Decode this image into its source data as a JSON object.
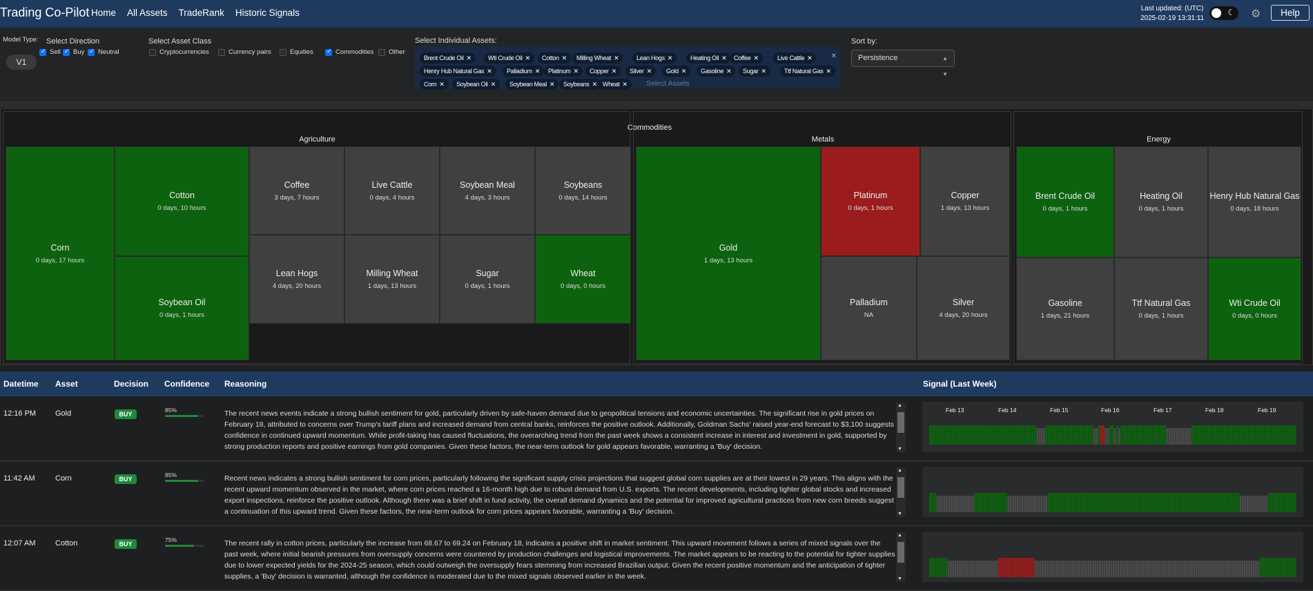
{
  "nav": {
    "brand": "Trading Co-Pilot",
    "links": [
      "Home",
      "All Assets",
      "TradeRank",
      "Historic Signals"
    ],
    "last_updated_label": "Last updated: (UTC)",
    "last_updated_value": "2025-02-19 13:31:11",
    "help": "Help",
    "theme_toggle_icon": "moon-icon",
    "settings_icon": "gear-icon"
  },
  "filters": {
    "model_type_label": "Model Type:",
    "model_type_value": "V1",
    "direction_label": "Select Direction",
    "directions": [
      {
        "label": "Sell",
        "checked": true
      },
      {
        "label": "Buy",
        "checked": true
      },
      {
        "label": "Neutral",
        "checked": true
      }
    ],
    "asset_class_label": "Select Asset Class",
    "asset_classes": [
      {
        "label": "Cryptocurrencies",
        "checked": false
      },
      {
        "label": "Currency pairs",
        "checked": false
      },
      {
        "label": "Equities",
        "checked": false
      },
      {
        "label": "Commodities",
        "checked": true
      },
      {
        "label": "Other",
        "checked": false
      }
    ],
    "assets_label": "Select Individual Assets:",
    "selected_assets": [
      "Brent Crude Oil",
      "Wti Crude Oil",
      "Cotton",
      "Milling Wheat",
      "Lean Hogs",
      "Heating Oil",
      "Coffee",
      "Live Cattle",
      "Henry Hub Natural Gas",
      "Palladium",
      "Platinum",
      "Copper",
      "Silver",
      "Gold",
      "Gasoline",
      "Sugar",
      "Ttf Natural Gas",
      "Corn",
      "Soybean Oil",
      "Soybean Meal",
      "Soybeans",
      "Wheat"
    ],
    "assets_placeholder": "Select Assets",
    "sort_label": "Sort by:",
    "sort_value": "Persistence"
  },
  "treemap": {
    "title": "Commodities",
    "groups": [
      {
        "name": "Agriculture",
        "items": [
          {
            "name": "Corn",
            "time": "0 days, 17 hours",
            "signal": "buy"
          },
          {
            "name": "Cotton",
            "time": "0 days, 10 hours",
            "signal": "buy"
          },
          {
            "name": "Soybean Oil",
            "time": "0 days, 1 hours",
            "signal": "buy"
          },
          {
            "name": "Coffee",
            "time": "3 days, 7 hours",
            "signal": "neutral"
          },
          {
            "name": "Live Cattle",
            "time": "0 days, 4 hours",
            "signal": "neutral"
          },
          {
            "name": "Soybean Meal",
            "time": "4 days, 3 hours",
            "signal": "neutral"
          },
          {
            "name": "Soybeans",
            "time": "0 days, 14 hours",
            "signal": "neutral"
          },
          {
            "name": "Lean Hogs",
            "time": "4 days, 20 hours",
            "signal": "neutral"
          },
          {
            "name": "Milling Wheat",
            "time": "1 days, 13 hours",
            "signal": "neutral"
          },
          {
            "name": "Sugar",
            "time": "0 days, 1 hours",
            "signal": "neutral"
          },
          {
            "name": "Wheat",
            "time": "0 days, 0 hours",
            "signal": "buy"
          }
        ]
      },
      {
        "name": "Metals",
        "items": [
          {
            "name": "Gold",
            "time": "1 days, 13 hours",
            "signal": "buy"
          },
          {
            "name": "Platinum",
            "time": "0 days, 1 hours",
            "signal": "sell"
          },
          {
            "name": "Copper",
            "time": "1 days, 13 hours",
            "signal": "neutral"
          },
          {
            "name": "Palladium",
            "time": "NA",
            "signal": "neutral"
          },
          {
            "name": "Silver",
            "time": "4 days, 20 hours",
            "signal": "neutral"
          }
        ]
      },
      {
        "name": "Energy",
        "items": [
          {
            "name": "Brent Crude Oil",
            "time": "0 days, 1 hours",
            "signal": "buy"
          },
          {
            "name": "Heating Oil",
            "time": "0 days, 1 hours",
            "signal": "neutral"
          },
          {
            "name": "Henry Hub Natural Gas",
            "time": "0 days, 18 hours",
            "signal": "neutral"
          },
          {
            "name": "Gasoline",
            "time": "1 days, 21 hours",
            "signal": "neutral"
          },
          {
            "name": "Ttf Natural Gas",
            "time": "0 days, 1 hours",
            "signal": "neutral"
          },
          {
            "name": "Wti Crude Oil",
            "time": "0 days, 0 hours",
            "signal": "buy"
          }
        ]
      }
    ]
  },
  "signals": {
    "headers": [
      "Datetime",
      "Asset",
      "Decision",
      "Confidence",
      "Reasoning",
      "Signal (Last Week)"
    ],
    "day_labels": [
      "Feb 13",
      "Feb 14",
      "Feb 15",
      "Feb 16",
      "Feb 17",
      "Feb 18",
      "Feb 19"
    ],
    "rows": [
      {
        "time": "12:16 PM",
        "asset": "Gold",
        "decision": "BUY",
        "confidence": "85%",
        "confidence_value": 0.85,
        "reasoning": "The recent news events indicate a strong bullish sentiment for gold, particularly driven by safe-haven demand due to geopolitical tensions and economic uncertainties. The significant rise in gold prices on February 18, attributed to concerns over Trump's tariff plans and increased demand from central banks, reinforces the positive outlook. Additionally, Goldman Sachs' raised year-end forecast to $3,100 suggests confidence in continued upward momentum. While profit-taking has caused fluctuations, the overarching trend from the past week shows a consistent increase in interest and investment in gold, supported by strong production reports and positive earnings from gold companies. Given these factors, the near-term outlook for gold appears favorable, warranting a 'Buy' decision.",
        "pattern": "GGGGGGGGGGGGGGGGGGGGGGGGGGGGGGGGGGGGGGGGGGGGGGGKKKKGGGGGGGGGGGGGGGGGGGGGKKGRRKKGGKGKGGGGGGGGGGGGGGGGGGGGKKKKKKKKKKKGGGGGGGGGGGGGGGGGGGGGGGGGGGGGGGGGGGGGGGGGGGGGG"
      },
      {
        "time": "11:42 AM",
        "asset": "Corn",
        "decision": "BUY",
        "confidence": "85%",
        "confidence_value": 0.85,
        "reasoning": "Recent news indicates a strong bullish sentiment for corn prices, particularly following the significant supply crisis projections that suggest global corn supplies are at their lowest in 29 years. This aligns with the recent upward momentum observed in the market, where corn prices reached a 16-month high due to robust demand from U.S. exports. The recent developments, including tighter global stocks and increased export inspections, reinforce the positive outlook. Although there was a brief shift in fund activity, the overall demand dynamics and the potential for improved agricultural practices from new corn breeds suggest a continuation of this upward trend. Given these factors, the near-term outlook for corn prices appears favorable, warranting a 'Buy' decision.",
        "pattern": "GGGKKKKKKKKKKKKKKKKGGGGGGGGGGGGGGKKKKKKKKKKKKKKKKKGGGGGGGGGGGGGGGGGGGGGGGGGGGGGGGGGGGGGGGGGGGGGGGGGGGGGGGGGGGGGGGGGGGGGGGGGGGGGGGGGKKKKKKKKKKKKGGGGGGGGGGGG"
      },
      {
        "time": "12:07 AM",
        "asset": "Cotton",
        "decision": "BUY",
        "confidence": "75%",
        "confidence_value": 0.75,
        "reasoning": "The recent rally in cotton prices, particularly the increase from 68.67 to 69.24 on February 18, indicates a positive shift in market sentiment. This upward movement follows a series of mixed signals over the past week, where initial bearish pressures from oversupply concerns were countered by production challenges and logistical improvements. The market appears to be reacting to the potential for tighter supplies due to lower expected yields for the 2024-25 season, which could outweigh the oversupply fears stemming from increased Brazilian output. Given the recent positive momentum and the anticipation of tighter supplies, a 'Buy' decision is warranted, although the confidence is moderated due to the mixed signals observed earlier in the week.",
        "pattern": "GGGGGGGGKKKKKKKKKKKKKKKKKKKKKKRRRRRRRRRRRRRRRRKKKKKKKKKKKKKKKKKKKKKKKKKKKKKKKKKKKKKKKKKKKKKKKKKKKKKKKKKKKKKKKKKKKKKKKKKKKKKKKKKKKKKKKKKKKKKKKKKKGGGGGGGGGGGGGGGG"
      }
    ]
  },
  "colors": {
    "buy": "#0d620f",
    "sell": "#9b1c1c",
    "neutral": "#404040",
    "header": "#1f3a5f"
  }
}
